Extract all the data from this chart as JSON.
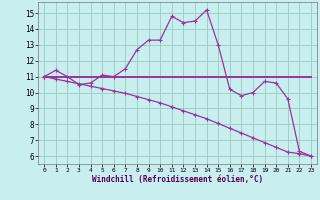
{
  "xlabel": "Windchill (Refroidissement éolien,°C)",
  "bg_color": "#c8eef0",
  "grid_color": "#99ccbb",
  "line_color": "#993399",
  "x_ticks": [
    0,
    1,
    2,
    3,
    4,
    5,
    6,
    7,
    8,
    9,
    10,
    11,
    12,
    13,
    14,
    15,
    16,
    17,
    18,
    19,
    20,
    21,
    22,
    23
  ],
  "y_ticks": [
    6,
    7,
    8,
    9,
    10,
    11,
    12,
    13,
    14,
    15
  ],
  "ylim": [
    5.5,
    15.7
  ],
  "xlim": [
    -0.5,
    23.5
  ],
  "series1_x": [
    0,
    1,
    2,
    3,
    4,
    5,
    6,
    7,
    8,
    9,
    10,
    11,
    12,
    13,
    14,
    15,
    16,
    17,
    18,
    19,
    20,
    21,
    22,
    23
  ],
  "series1_y": [
    11.0,
    11.4,
    11.0,
    10.5,
    10.6,
    11.1,
    11.0,
    11.5,
    12.7,
    13.3,
    13.3,
    14.8,
    14.4,
    14.5,
    15.2,
    13.0,
    10.2,
    9.8,
    10.0,
    10.7,
    10.6,
    9.6,
    6.3,
    6.0
  ],
  "series2_x": [
    0,
    23
  ],
  "series2_y": [
    11.0,
    11.0
  ],
  "series3_x": [
    0,
    1,
    2,
    3,
    4,
    5,
    6,
    7,
    8,
    9,
    10,
    11,
    12,
    13,
    14,
    15,
    16,
    17,
    18,
    19,
    20,
    21,
    22,
    23
  ],
  "series3_y": [
    11.0,
    10.85,
    10.7,
    10.55,
    10.4,
    10.25,
    10.1,
    9.95,
    9.75,
    9.55,
    9.35,
    9.1,
    8.85,
    8.6,
    8.35,
    8.05,
    7.75,
    7.45,
    7.15,
    6.85,
    6.55,
    6.25,
    6.15,
    6.0
  ]
}
